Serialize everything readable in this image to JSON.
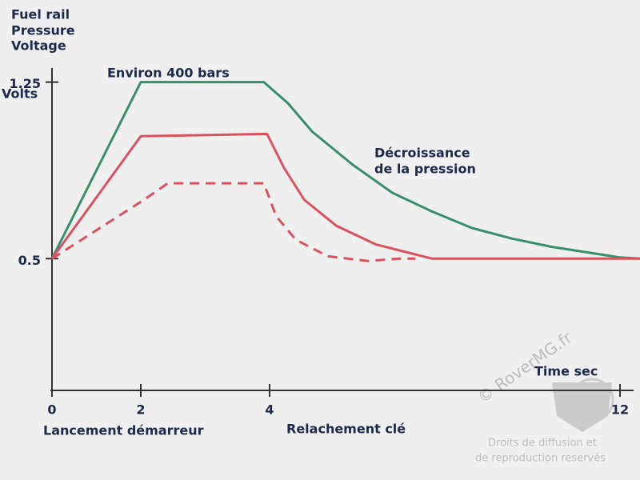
{
  "chart_data": {
    "type": "line",
    "ylabel": [
      "Fuel rail",
      "Pressure",
      "Voltage"
    ],
    "yunit": "Volts",
    "xlabel": "Time sec",
    "annotations": [
      "Environ 400 bars",
      "Décroissance",
      "de la pression",
      "Lancement démarreur",
      "Relachement clé"
    ],
    "watermark": [
      "© RoverMG.fr",
      "Droits de diffusion et",
      "de reproduction reservés"
    ],
    "xlim": [
      0,
      12.46
    ],
    "xticks": [
      0,
      2,
      4,
      12
    ],
    "ylim": [
      -0.06,
      1.31
    ],
    "yticks": [
      0.5,
      1.25
    ],
    "grid": false,
    "series": [
      {
        "color": "#3a8f6a",
        "dashed": false,
        "x": [
          0,
          2,
          3.91,
          4.42,
          4.97,
          5.89,
          6.8,
          7.71,
          8.62,
          9.54,
          10.45,
          12,
          12.46
        ],
        "values": [
          0.5,
          1.25,
          1.25,
          1.16,
          1.04,
          0.9,
          0.78,
          0.7,
          0.63,
          0.585,
          0.55,
          0.505,
          0.5
        ]
      },
      {
        "color": "#d9535f",
        "dashed": false,
        "x": [
          0,
          2,
          3.96,
          4.33,
          4.79,
          5.52,
          6.43,
          7.71,
          12,
          12.46
        ],
        "values": [
          0.5,
          1.02,
          1.03,
          0.885,
          0.75,
          0.64,
          0.56,
          0.5,
          0.5,
          0.5
        ]
      },
      {
        "color": "#d9535f",
        "dashed": true,
        "x": [
          0,
          2.05,
          2.42,
          2.79,
          3.41,
          3.91,
          4.15,
          4.6,
          5.33,
          6.24,
          6.97,
          7.33
        ],
        "values": [
          0.5,
          0.75,
          0.82,
          0.82,
          0.82,
          0.82,
          0.68,
          0.58,
          0.51,
          0.49,
          0.5,
          0.5
        ]
      }
    ]
  }
}
